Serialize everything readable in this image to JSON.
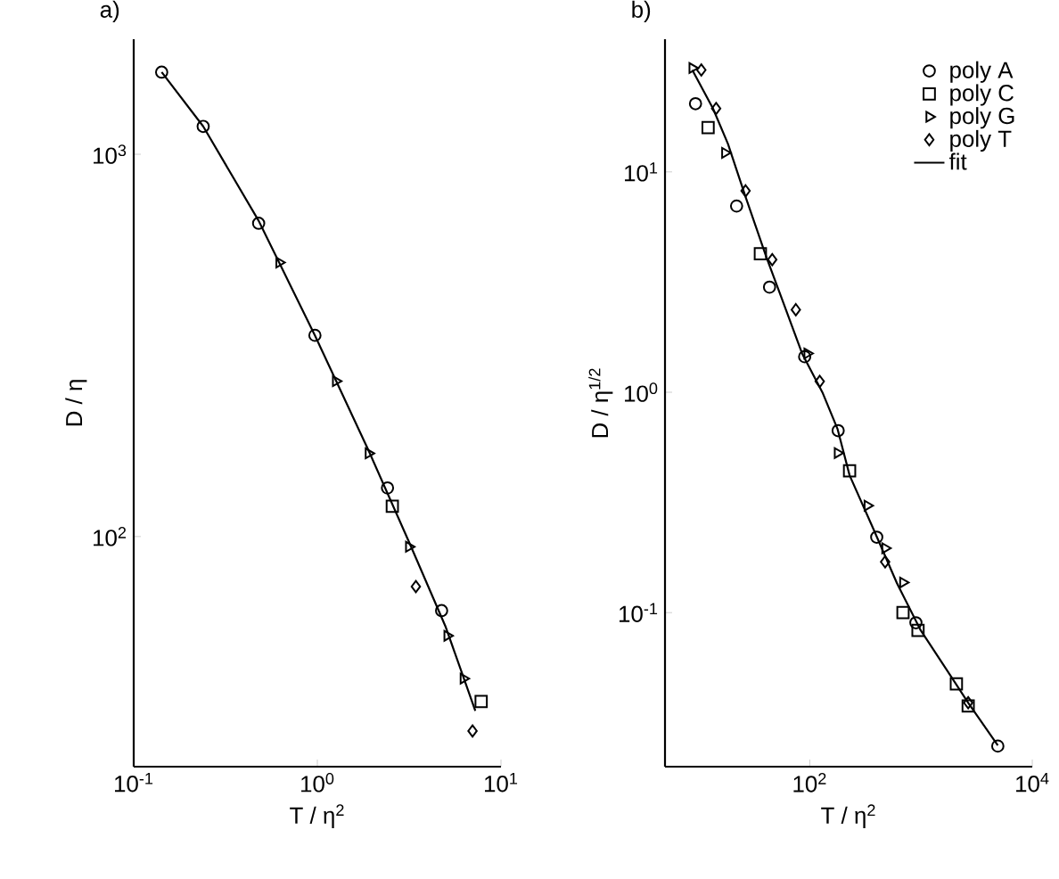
{
  "chart_data": [
    {
      "type": "scatter",
      "title": "a)",
      "xlabel": "T / η$^{2}$",
      "ylabel": "D / η",
      "log": "xy",
      "xlim": [
        0.1,
        10
      ],
      "ylim": [
        25,
        2000
      ],
      "xticks": [
        {
          "value": 0.1,
          "label": "10$^{-1}$"
        },
        {
          "value": 1,
          "label": "10$^{0}$"
        },
        {
          "value": 10,
          "label": "10$^{1}$"
        }
      ],
      "yticks": [
        {
          "value": 100,
          "label": "10$^{2}$"
        },
        {
          "value": 1000,
          "label": "10$^{3}$"
        }
      ],
      "series": [
        {
          "color": "#000000",
          "marker": "circle",
          "x": [
            0.142,
            0.239,
            0.479,
            0.97,
            2.41,
            4.75
          ],
          "values": [
            1640,
            1183,
            660,
            336,
            134,
            64
          ]
        },
        {
          "color": "#000000",
          "marker": "square",
          "x": [
            2.56,
            7.8
          ],
          "values": [
            120,
            37
          ]
        },
        {
          "color": "#000000",
          "marker": "triangle",
          "x": [
            0.62,
            1.26,
            1.9,
            3.15,
            5.1,
            6.25
          ],
          "values": [
            521,
            255,
            165,
            94,
            55,
            42.5
          ]
        },
        {
          "color": "#000000",
          "marker": "diamond",
          "x": [
            3.44,
            7.0
          ],
          "values": [
            74,
            31
          ]
        },
        {
          "type": "line",
          "color": "#000000",
          "marker": "none",
          "line_style": "solid",
          "x": [
            0.142,
            0.239,
            0.479,
            0.97,
            1.9,
            3.15,
            5.0,
            7.25
          ],
          "values": [
            1640,
            1183,
            670,
            336,
            168,
            97,
            58,
            35
          ]
        }
      ]
    },
    {
      "type": "scatter",
      "title": "b)",
      "xlabel": "T / η$^{2}$",
      "ylabel": "D / η$^{1/2}$",
      "log": "xy",
      "xlim": [
        5,
        10000
      ],
      "ylim": [
        0.02,
        40
      ],
      "legend": "top right",
      "xticks": [
        {
          "value": 100,
          "label": "10$^{2}$"
        },
        {
          "value": 10000,
          "label": "10$^{4}$"
        }
      ],
      "yticks": [
        {
          "value": 0.1,
          "label": "10$^{-1}$"
        },
        {
          "value": 1,
          "label": "10$^{0}$"
        },
        {
          "value": 10,
          "label": "10$^{1}$"
        }
      ],
      "series": [
        {
          "name": "poly A",
          "color": "#000000",
          "marker": "circle",
          "x": [
            9.4,
            22,
            43.5,
            90,
            180,
            400,
            900,
            4900
          ],
          "values": [
            20.4,
            7.0,
            3.0,
            1.45,
            0.67,
            0.22,
            0.09,
            0.0248
          ]
        },
        {
          "name": "poly C",
          "color": "#000000",
          "marker": "square",
          "x": [
            12.2,
            36,
            228,
            689,
            940,
            2080,
            2655
          ],
          "values": [
            15.9,
            4.25,
            0.44,
            0.1,
            0.083,
            0.0475,
            0.0377
          ]
        },
        {
          "name": "poly G",
          "color": "#000000",
          "marker": "triangle",
          "x": [
            8.8,
            17.3,
            95,
            178,
            330,
            476,
            689
          ],
          "values": [
            29.6,
            12.2,
            1.5,
            0.53,
            0.306,
            0.196,
            0.137
          ]
        },
        {
          "name": "poly T",
          "color": "#000000",
          "marker": "diamond",
          "x": [
            10.6,
            14.4,
            26.5,
            46,
            75,
            123,
            476,
            2655
          ],
          "values": [
            29,
            19.4,
            8.2,
            4.0,
            2.37,
            1.12,
            0.17,
            0.039
          ]
        },
        {
          "name": "fit",
          "type": "line",
          "color": "#000000",
          "marker": "none",
          "line_style": "solid",
          "x": [
            8.8,
            13.5,
            18.4,
            26.5,
            40.8,
            55.5,
            85.3,
            131,
            178,
            228,
            373,
            608,
            995,
            1626,
            2655,
            4900
          ],
          "values": [
            29,
            19.4,
            13.4,
            7.7,
            4.1,
            2.7,
            1.5,
            0.99,
            0.68,
            0.42,
            0.24,
            0.136,
            0.083,
            0.057,
            0.039,
            0.025
          ]
        }
      ]
    }
  ]
}
